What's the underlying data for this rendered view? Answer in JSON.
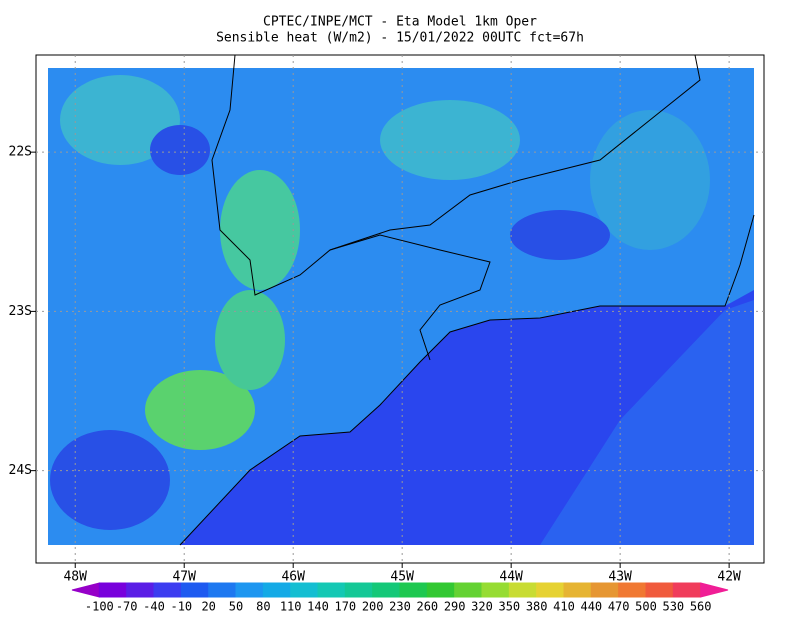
{
  "header": {
    "title": "CPTEC/INPE/MCT -  Eta Model 1km Oper",
    "subtitle": "Sensible heat (W/m2) - 15/01/2022 00UTC fct=67h"
  },
  "map": {
    "xlim": [
      -48.36,
      -41.68
    ],
    "ylim": [
      -24.58,
      -21.39
    ],
    "xticks": [
      {
        "value": -48,
        "label": "48W"
      },
      {
        "value": -47,
        "label": "47W"
      },
      {
        "value": -46,
        "label": "46W"
      },
      {
        "value": -45,
        "label": "45W"
      },
      {
        "value": -44,
        "label": "44W"
      },
      {
        "value": -43,
        "label": "43W"
      },
      {
        "value": -42,
        "label": "42W"
      }
    ],
    "yticks": [
      {
        "value": -22,
        "label": "22S"
      },
      {
        "value": -23,
        "label": "23S"
      },
      {
        "value": -24,
        "label": "24S"
      }
    ],
    "grid": true
  },
  "colorbar": {
    "levels": [
      -100,
      -70,
      -40,
      -10,
      20,
      50,
      80,
      110,
      140,
      170,
      200,
      230,
      260,
      290,
      320,
      350,
      380,
      410,
      440,
      470,
      500,
      530,
      560
    ],
    "colors": [
      "#9600c8",
      "#7800dc",
      "#5a1ee6",
      "#3c3cf0",
      "#1e5af0",
      "#1e78f0",
      "#1e96f0",
      "#14aae6",
      "#14bed2",
      "#14c8b4",
      "#14c896",
      "#14c878",
      "#1ec850",
      "#32c832",
      "#64d232",
      "#96dc32",
      "#c8dc32",
      "#e6d232",
      "#e6b432",
      "#e69632",
      "#f07832",
      "#f05a3c",
      "#f03c5a",
      "#f01e96"
    ]
  }
}
